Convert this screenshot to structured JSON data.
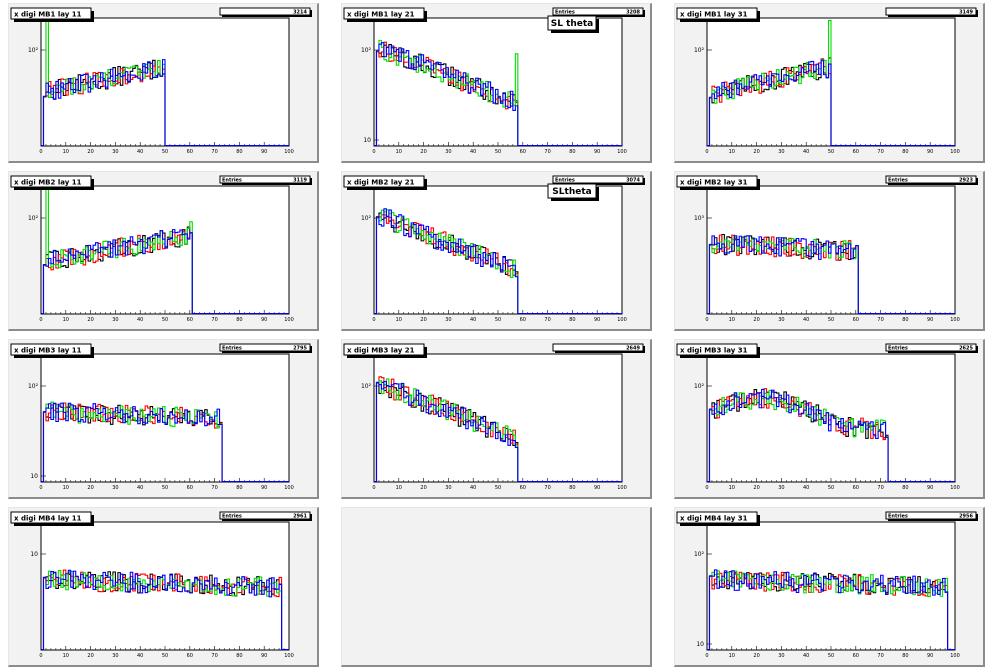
{
  "colors": {
    "series1": "#000000",
    "series2": "#ff0000",
    "series3": "#00dd00",
    "series4": "#0000ff"
  },
  "chart_data": [
    {
      "type": "line",
      "title": "x digi MB1 lay 11",
      "stats_label": "",
      "stats_value": "3214",
      "overlay_label": "",
      "xlim": [
        0,
        100
      ],
      "log_ticks": [
        "10²"
      ],
      "xticks": [
        "0",
        "10",
        "20",
        "30",
        "40",
        "50",
        "60",
        "70",
        "80",
        "90",
        "100"
      ],
      "shape": "plateau",
      "edge": 50,
      "spike": 1,
      "hasSpikeLast": false,
      "highTop": true
    },
    {
      "type": "line",
      "title": "x digi MB1 lay 21",
      "stats_label": "Entries",
      "stats_value": "3208",
      "overlay_label": "SL theta",
      "xlim": [
        0,
        100
      ],
      "log_ticks": [
        "10²",
        "10"
      ],
      "xticks": [
        "0",
        "10",
        "20",
        "30",
        "40",
        "50",
        "60",
        "70",
        "80",
        "90",
        "100"
      ],
      "shape": "decay",
      "edge": 58,
      "spike": 0,
      "hasSpikeLast": true,
      "highTop": false
    },
    {
      "type": "line",
      "title": "x digi MB1 lay 31",
      "stats_label": "",
      "stats_value": "3149",
      "overlay_label": "",
      "xlim": [
        0,
        100
      ],
      "log_ticks": [
        "10²"
      ],
      "xticks": [
        "0",
        "10",
        "20",
        "30",
        "40",
        "50",
        "60",
        "70",
        "80",
        "90",
        "100"
      ],
      "shape": "rise",
      "edge": 50,
      "spike": 0,
      "hasSpikeLast": true,
      "highTop": true
    },
    {
      "type": "line",
      "title": "x digi MB2 lay 11",
      "stats_label": "Entries",
      "stats_value": "3119",
      "overlay_label": "",
      "xlim": [
        0,
        100
      ],
      "log_ticks": [
        "10²"
      ],
      "xticks": [
        "0",
        "10",
        "20",
        "30",
        "40",
        "50",
        "60",
        "70",
        "80",
        "90",
        "100"
      ],
      "shape": "rise",
      "edge": 61,
      "spike": 1,
      "hasSpikeLast": true,
      "highTop": false
    },
    {
      "type": "line",
      "title": "x digi MB2 lay 21",
      "stats_label": "Entries",
      "stats_value": "3074",
      "overlay_label": "SLtheta",
      "xlim": [
        0,
        100
      ],
      "log_ticks": [
        "10²"
      ],
      "xticks": [
        "0",
        "10",
        "20",
        "30",
        "40",
        "50",
        "60",
        "70",
        "80",
        "90",
        "100"
      ],
      "shape": "decay",
      "edge": 58,
      "spike": 0,
      "hasSpikeLast": false,
      "highTop": false
    },
    {
      "type": "line",
      "title": "x digi MB2 lay 31",
      "stats_label": "Entries",
      "stats_value": "2923",
      "overlay_label": "",
      "xlim": [
        0,
        100
      ],
      "log_ticks": [
        "10³"
      ],
      "xticks": [
        "0",
        "10",
        "20",
        "30",
        "40",
        "50",
        "60",
        "70",
        "80",
        "90",
        "100"
      ],
      "shape": "flat",
      "edge": 61,
      "spike": 0,
      "hasSpikeLast": false,
      "highTop": false
    },
    {
      "type": "line",
      "title": "x digi MB3 lay 11",
      "stats_label": "Entries",
      "stats_value": "2795",
      "overlay_label": "",
      "xlim": [
        0,
        100
      ],
      "log_ticks": [
        "10²",
        "10"
      ],
      "xticks": [
        "0",
        "10",
        "20",
        "30",
        "40",
        "50",
        "60",
        "70",
        "80",
        "90",
        "100"
      ],
      "shape": "flat",
      "edge": 73,
      "spike": 0,
      "hasSpikeLast": false,
      "highTop": false
    },
    {
      "type": "line",
      "title": "x digi MB3 lay 21",
      "stats_label": "",
      "stats_value": "2649",
      "overlay_label": "",
      "xlim": [
        0,
        100
      ],
      "log_ticks": [
        "10²"
      ],
      "xticks": [
        "0",
        "10",
        "20",
        "30",
        "40",
        "50",
        "60",
        "70",
        "80",
        "90",
        "100"
      ],
      "shape": "decay",
      "edge": 58,
      "spike": 0,
      "hasSpikeLast": false,
      "highTop": false
    },
    {
      "type": "line",
      "title": "x digi MB3 lay 31",
      "stats_label": "Entries",
      "stats_value": "2625",
      "overlay_label": "",
      "xlim": [
        0,
        100
      ],
      "log_ticks": [
        "10²"
      ],
      "xticks": [
        "0",
        "10",
        "20",
        "30",
        "40",
        "50",
        "60",
        "70",
        "80",
        "90",
        "100"
      ],
      "shape": "hump",
      "edge": 73,
      "spike": 0,
      "hasSpikeLast": false,
      "highTop": false
    },
    {
      "type": "line",
      "title": "x digi MB4 lay 11",
      "stats_label": "Entries",
      "stats_value": "2961",
      "overlay_label": "",
      "xlim": [
        0,
        100
      ],
      "log_ticks": [
        "10"
      ],
      "xticks": [
        "0",
        "10",
        "20",
        "30",
        "40",
        "50",
        "60",
        "70",
        "80",
        "90",
        "100"
      ],
      "shape": "flat",
      "edge": 97,
      "spike": 0,
      "hasSpikeLast": false,
      "highTop": false
    },
    null,
    {
      "type": "line",
      "title": "x digi MB4 lay 31",
      "stats_label": "Entries",
      "stats_value": "2956",
      "overlay_label": "",
      "xlim": [
        0,
        100
      ],
      "log_ticks": [
        "10²",
        "10"
      ],
      "xticks": [
        "0",
        "10",
        "20",
        "30",
        "40",
        "50",
        "60",
        "70",
        "80",
        "90",
        "100"
      ],
      "shape": "flat",
      "edge": 97,
      "spike": 0,
      "hasSpikeLast": false,
      "highTop": false
    }
  ]
}
